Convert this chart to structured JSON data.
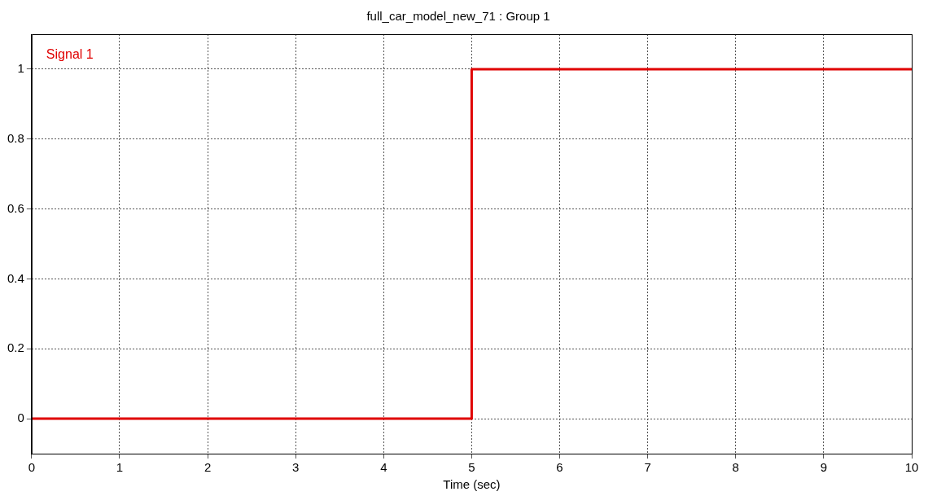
{
  "chart_data": {
    "type": "line",
    "title": "full_car_model_new_71 : Group 1",
    "xlabel": "Time (sec)",
    "x": [
      0,
      5,
      5,
      10
    ],
    "series": [
      {
        "name": "Signal 1",
        "color": "#e00000",
        "values": [
          0,
          0,
          1,
          1
        ]
      }
    ],
    "xlim": [
      0,
      10
    ],
    "xticks": [
      0,
      1,
      2,
      3,
      4,
      5,
      6,
      7,
      8,
      9,
      10
    ],
    "ylim": [
      -0.1,
      1.1
    ],
    "yticks": [
      0,
      0.2,
      0.4,
      0.6,
      0.8,
      1
    ],
    "grid": true,
    "line_style": "solid",
    "marker": "none"
  }
}
